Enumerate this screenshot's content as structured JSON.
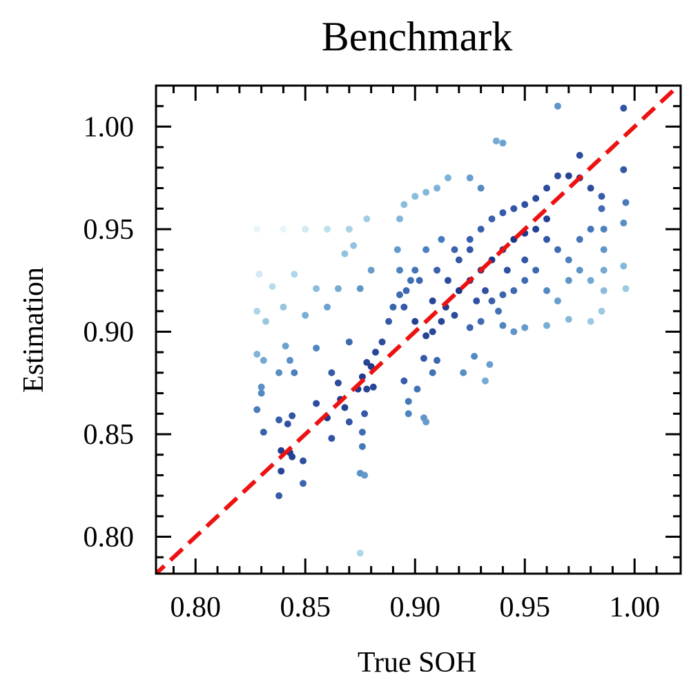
{
  "chart_data": {
    "type": "scatter",
    "title": "Benchmark",
    "xlabel": "True SOH",
    "ylabel": "Estimation",
    "xlim": [
      0.782,
      1.021
    ],
    "ylim": [
      0.782,
      1.02
    ],
    "xticks": [
      "0.80",
      "0.85",
      "0.90",
      "0.95",
      "1.00"
    ],
    "yticks": [
      "0.80",
      "0.85",
      "0.90",
      "0.95",
      "1.00"
    ],
    "tick_values": [
      0.8,
      0.85,
      0.9,
      0.95,
      1.0
    ],
    "grid": false,
    "colormap": [
      "#0a1f6e",
      "#2f4fa2",
      "#4d83bf",
      "#7fb4d8",
      "#b4dbea",
      "#e6f5fa"
    ],
    "reference_line": {
      "style": "dashed",
      "color": "#ee1111",
      "slope": 1,
      "intercept": 0
    },
    "point_color": "#3a62ad",
    "series": [
      {
        "points": [
          [
            0.965,
            1.01
          ],
          [
            0.995,
            1.009
          ],
          [
            0.975,
            0.986
          ],
          [
            0.995,
            0.979
          ],
          [
            0.937,
            0.993
          ],
          [
            0.94,
            0.992
          ],
          [
            0.996,
            0.963
          ],
          [
            0.995,
            0.932
          ],
          [
            0.995,
            0.953
          ],
          [
            0.996,
            0.921
          ],
          [
            0.828,
            0.95
          ],
          [
            0.84,
            0.95
          ],
          [
            0.85,
            0.95
          ],
          [
            0.86,
            0.95
          ],
          [
            0.87,
            0.95
          ],
          [
            0.878,
            0.955
          ],
          [
            0.829,
            0.928
          ],
          [
            0.835,
            0.922
          ],
          [
            0.845,
            0.928
          ],
          [
            0.855,
            0.921
          ],
          [
            0.865,
            0.921
          ],
          [
            0.875,
            0.921
          ],
          [
            0.88,
            0.93
          ],
          [
            0.828,
            0.91
          ],
          [
            0.832,
            0.905
          ],
          [
            0.84,
            0.912
          ],
          [
            0.85,
            0.908
          ],
          [
            0.86,
            0.912
          ],
          [
            0.868,
            0.938
          ],
          [
            0.872,
            0.942
          ],
          [
            0.828,
            0.889
          ],
          [
            0.831,
            0.886
          ],
          [
            0.83,
            0.873
          ],
          [
            0.83,
            0.87
          ],
          [
            0.828,
            0.862
          ],
          [
            0.831,
            0.851
          ],
          [
            0.838,
            0.88
          ],
          [
            0.841,
            0.893
          ],
          [
            0.843,
            0.886
          ],
          [
            0.845,
            0.88
          ],
          [
            0.855,
            0.892
          ],
          [
            0.862,
            0.88
          ],
          [
            0.865,
            0.875
          ],
          [
            0.87,
            0.895
          ],
          [
            0.878,
            0.885
          ],
          [
            0.881,
            0.873
          ],
          [
            0.878,
            0.872
          ],
          [
            0.838,
            0.857
          ],
          [
            0.839,
            0.842
          ],
          [
            0.844,
            0.859
          ],
          [
            0.842,
            0.855
          ],
          [
            0.843,
            0.841
          ],
          [
            0.844,
            0.839
          ],
          [
            0.839,
            0.832
          ],
          [
            0.849,
            0.837
          ],
          [
            0.838,
            0.82
          ],
          [
            0.849,
            0.826
          ],
          [
            0.855,
            0.865
          ],
          [
            0.86,
            0.858
          ],
          [
            0.862,
            0.848
          ],
          [
            0.866,
            0.867
          ],
          [
            0.868,
            0.863
          ],
          [
            0.87,
            0.856
          ],
          [
            0.874,
            0.872
          ],
          [
            0.876,
            0.878
          ],
          [
            0.877,
            0.86
          ],
          [
            0.876,
            0.851
          ],
          [
            0.876,
            0.844
          ],
          [
            0.875,
            0.831
          ],
          [
            0.877,
            0.83
          ],
          [
            0.875,
            0.792
          ],
          [
            0.88,
            0.883
          ],
          [
            0.882,
            0.89
          ],
          [
            0.885,
            0.895
          ],
          [
            0.888,
            0.905
          ],
          [
            0.89,
            0.912
          ],
          [
            0.893,
            0.918
          ],
          [
            0.896,
            0.92
          ],
          [
            0.898,
            0.925
          ],
          [
            0.9,
            0.93
          ],
          [
            0.895,
            0.876
          ],
          [
            0.897,
            0.866
          ],
          [
            0.897,
            0.86
          ],
          [
            0.901,
            0.872
          ],
          [
            0.904,
            0.858
          ],
          [
            0.905,
            0.856
          ],
          [
            0.908,
            0.88
          ],
          [
            0.904,
            0.887
          ],
          [
            0.91,
            0.886
          ],
          [
            0.922,
            0.88
          ],
          [
            0.927,
            0.888
          ],
          [
            0.932,
            0.876
          ],
          [
            0.934,
            0.884
          ],
          [
            0.92,
            0.935
          ],
          [
            0.925,
            0.945
          ],
          [
            0.93,
            0.95
          ],
          [
            0.935,
            0.955
          ],
          [
            0.94,
            0.958
          ],
          [
            0.945,
            0.96
          ],
          [
            0.95,
            0.962
          ],
          [
            0.955,
            0.965
          ],
          [
            0.96,
            0.97
          ],
          [
            0.965,
            0.976
          ],
          [
            0.97,
            0.976
          ],
          [
            0.975,
            0.975
          ],
          [
            0.98,
            0.97
          ],
          [
            0.985,
            0.966
          ],
          [
            0.985,
            0.96
          ],
          [
            0.986,
            0.95
          ],
          [
            0.986,
            0.94
          ],
          [
            0.986,
            0.93
          ],
          [
            0.986,
            0.92
          ],
          [
            0.985,
            0.91
          ],
          [
            0.98,
            0.905
          ],
          [
            0.97,
            0.906
          ],
          [
            0.96,
            0.903
          ],
          [
            0.95,
            0.902
          ],
          [
            0.945,
            0.9
          ],
          [
            0.94,
            0.903
          ],
          [
            0.938,
            0.91
          ],
          [
            0.93,
            0.905
          ],
          [
            0.925,
            0.902
          ],
          [
            0.918,
            0.908
          ],
          [
            0.912,
            0.905
          ],
          [
            0.908,
            0.9
          ],
          [
            0.905,
            0.898
          ],
          [
            0.9,
            0.905
          ],
          [
            0.895,
            0.912
          ],
          [
            0.893,
            0.93
          ],
          [
            0.892,
            0.94
          ],
          [
            0.893,
            0.955
          ],
          [
            0.895,
            0.962
          ],
          [
            0.9,
            0.966
          ],
          [
            0.905,
            0.968
          ],
          [
            0.91,
            0.97
          ],
          [
            0.915,
            0.975
          ],
          [
            0.925,
            0.975
          ],
          [
            0.93,
            0.97
          ],
          [
            0.91,
            0.93
          ],
          [
            0.915,
            0.925
          ],
          [
            0.92,
            0.92
          ],
          [
            0.925,
            0.925
          ],
          [
            0.93,
            0.93
          ],
          [
            0.935,
            0.935
          ],
          [
            0.94,
            0.94
          ],
          [
            0.945,
            0.945
          ],
          [
            0.95,
            0.948
          ],
          [
            0.955,
            0.95
          ],
          [
            0.96,
            0.945
          ],
          [
            0.965,
            0.94
          ],
          [
            0.97,
            0.935
          ],
          [
            0.975,
            0.93
          ],
          [
            0.98,
            0.925
          ],
          [
            0.955,
            0.93
          ],
          [
            0.95,
            0.925
          ],
          [
            0.945,
            0.92
          ],
          [
            0.94,
            0.918
          ],
          [
            0.935,
            0.915
          ],
          [
            0.96,
            0.92
          ],
          [
            0.965,
            0.915
          ],
          [
            0.97,
            0.925
          ],
          [
            0.975,
            0.945
          ],
          [
            0.98,
            0.95
          ],
          [
            0.96,
            0.955
          ],
          [
            0.95,
            0.935
          ],
          [
            0.925,
            0.94
          ],
          [
            0.918,
            0.94
          ],
          [
            0.912,
            0.945
          ],
          [
            0.905,
            0.94
          ],
          [
            0.902,
            0.925
          ],
          [
            0.908,
            0.915
          ],
          [
            0.914,
            0.912
          ],
          [
            0.928,
            0.915
          ],
          [
            0.932,
            0.92
          ],
          [
            0.942,
            0.93
          ]
        ]
      }
    ]
  }
}
